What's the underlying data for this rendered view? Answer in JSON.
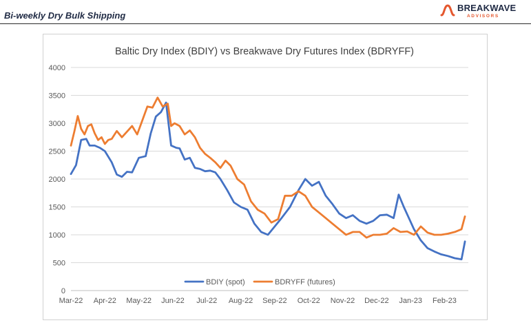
{
  "header": {
    "title": "Bi-weekly Dry Bulk Shipping",
    "brand_name": "BREAKWAVE",
    "brand_sub": "ADVISORS"
  },
  "colors": {
    "bdiy": "#4472C4",
    "bdryff": "#ED7D31",
    "brand_accent": "#e4572e",
    "brand_dark": "#1f2a44"
  },
  "chart_data": {
    "type": "line",
    "title": "Baltic Dry Index (BDIY) vs Breakwave Dry Futures Index (BDRYFF)",
    "xlabel": "",
    "ylabel": "",
    "ylim": [
      0,
      4000
    ],
    "yticks": [
      "0",
      "500",
      "1000",
      "1500",
      "2000",
      "2500",
      "3000",
      "3500",
      "4000"
    ],
    "xticks": [
      "Mar-22",
      "Apr-22",
      "May-22",
      "Jun-22",
      "Jul-22",
      "Aug-22",
      "Sep-22",
      "Oct-22",
      "Nov-22",
      "Dec-22",
      "Jan-23",
      "Feb-23"
    ],
    "grid": "horizontal",
    "legend": "bottom",
    "series": [
      {
        "name": "BDIY (spot)",
        "x": [
          0,
          0.15,
          0.3,
          0.45,
          0.55,
          0.7,
          0.85,
          1.0,
          1.2,
          1.35,
          1.5,
          1.65,
          1.8,
          2.0,
          2.2,
          2.35,
          2.5,
          2.65,
          2.8,
          2.95,
          3.1,
          3.2,
          3.35,
          3.5,
          3.65,
          3.8,
          3.95,
          4.1,
          4.25,
          4.4,
          4.6,
          4.8,
          5.0,
          5.2,
          5.4,
          5.6,
          5.8,
          6.0,
          6.2,
          6.45,
          6.7,
          6.9,
          7.1,
          7.3,
          7.5,
          7.7,
          7.9,
          8.1,
          8.3,
          8.5,
          8.7,
          8.9,
          9.1,
          9.3,
          9.5,
          9.65,
          9.8,
          9.95,
          10.1,
          10.3,
          10.5,
          10.7,
          10.9,
          11.1,
          11.3,
          11.5,
          11.6
        ],
        "values": [
          2090,
          2250,
          2700,
          2720,
          2600,
          2600,
          2560,
          2500,
          2300,
          2080,
          2040,
          2130,
          2120,
          2380,
          2410,
          2820,
          3120,
          3200,
          3370,
          2600,
          2560,
          2550,
          2350,
          2380,
          2200,
          2180,
          2140,
          2150,
          2120,
          2000,
          1800,
          1580,
          1500,
          1450,
          1200,
          1050,
          1000,
          1150,
          1300,
          1500,
          1800,
          2000,
          1880,
          1950,
          1700,
          1550,
          1380,
          1300,
          1350,
          1250,
          1200,
          1250,
          1350,
          1360,
          1300,
          1720,
          1500,
          1300,
          1100,
          900,
          760,
          700,
          650,
          620,
          580,
          560,
          880
        ]
      },
      {
        "name": "BDRYFF (futures)",
        "x": [
          0,
          0.1,
          0.2,
          0.3,
          0.4,
          0.5,
          0.6,
          0.7,
          0.8,
          0.9,
          1.0,
          1.1,
          1.2,
          1.35,
          1.5,
          1.65,
          1.8,
          1.95,
          2.1,
          2.25,
          2.4,
          2.55,
          2.7,
          2.85,
          2.95,
          3.05,
          3.2,
          3.35,
          3.5,
          3.65,
          3.8,
          3.95,
          4.1,
          4.25,
          4.4,
          4.55,
          4.7,
          4.9,
          5.1,
          5.3,
          5.5,
          5.7,
          5.9,
          6.1,
          6.3,
          6.5,
          6.7,
          6.9,
          7.1,
          7.3,
          7.5,
          7.7,
          7.9,
          8.1,
          8.3,
          8.5,
          8.7,
          8.9,
          9.1,
          9.3,
          9.5,
          9.7,
          9.9,
          10.1,
          10.3,
          10.5,
          10.7,
          10.9,
          11.1,
          11.3,
          11.5,
          11.6
        ],
        "values": [
          2600,
          2850,
          3130,
          2900,
          2800,
          2950,
          2980,
          2820,
          2700,
          2750,
          2630,
          2700,
          2720,
          2860,
          2750,
          2850,
          2950,
          2800,
          3050,
          3300,
          3280,
          3460,
          3300,
          3350,
          2950,
          3000,
          2950,
          2800,
          2870,
          2750,
          2560,
          2450,
          2380,
          2300,
          2200,
          2330,
          2240,
          2000,
          1900,
          1600,
          1450,
          1380,
          1220,
          1280,
          1700,
          1700,
          1780,
          1700,
          1500,
          1400,
          1300,
          1200,
          1100,
          1000,
          1050,
          1050,
          950,
          1000,
          1000,
          1020,
          1120,
          1050,
          1060,
          1000,
          1150,
          1040,
          1000,
          1000,
          1020,
          1050,
          1100,
          1330
        ]
      }
    ]
  }
}
